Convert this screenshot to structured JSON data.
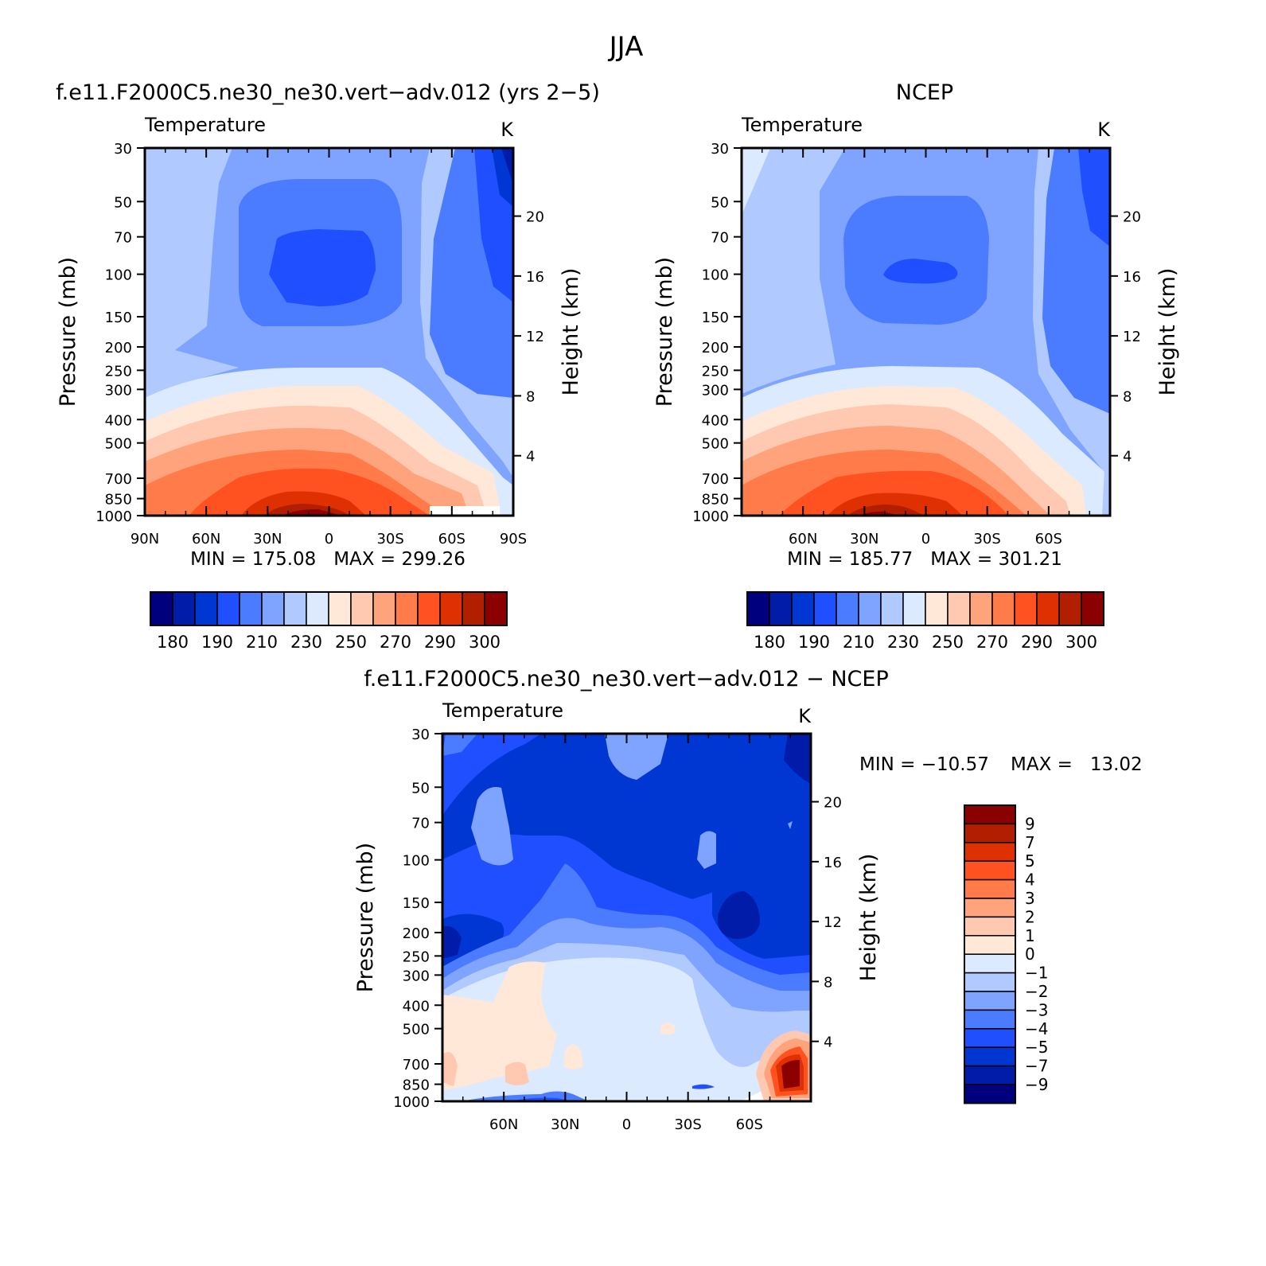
{
  "figure": {
    "title": "JJA"
  },
  "chart_data": [
    {
      "type": "heatmap",
      "title": "f.e11.F2000C5.ne30_ne30.vert−adv.012 (yrs 2−5)",
      "subtitle_left": "Temperature",
      "subtitle_right": "K",
      "ylabel": "Pressure (mb)",
      "y2label": "Height (km)",
      "x_ticks": [
        "90N",
        "60N",
        "30N",
        "0",
        "30S",
        "60S",
        "90S"
      ],
      "y_ticks": [
        30,
        50,
        70,
        100,
        150,
        200,
        250,
        300,
        400,
        500,
        700,
        850,
        1000
      ],
      "y2_ticks": [
        20,
        16,
        12,
        8,
        4
      ],
      "stats": "MIN = 175.08   MAX = 299.26",
      "colorbar_labels": [
        "180",
        "190",
        "210",
        "230",
        "250",
        "270",
        "290",
        "300"
      ]
    },
    {
      "type": "heatmap",
      "title": "NCEP",
      "subtitle_left": "Temperature",
      "subtitle_right": "K",
      "ylabel": "Pressure (mb)",
      "y2label": "Height (km)",
      "x_ticks": [
        "60N",
        "30N",
        "0",
        "30S",
        "60S"
      ],
      "y_ticks": [
        30,
        50,
        70,
        100,
        150,
        200,
        250,
        300,
        400,
        500,
        700,
        850,
        1000
      ],
      "y2_ticks": [
        20,
        16,
        12,
        8,
        4
      ],
      "stats": "MIN = 185.77   MAX = 301.21",
      "colorbar_labels": [
        "180",
        "190",
        "210",
        "230",
        "250",
        "270",
        "290",
        "300"
      ]
    },
    {
      "type": "heatmap",
      "title": "f.e11.F2000C5.ne30_ne30.vert−adv.012 − NCEP",
      "subtitle_left": "Temperature",
      "subtitle_right": "K",
      "ylabel": "Pressure (mb)",
      "y2label": "Height (km)",
      "x_ticks": [
        "60N",
        "30N",
        "0",
        "30S",
        "60S"
      ],
      "y_ticks": [
        30,
        50,
        70,
        100,
        150,
        200,
        250,
        300,
        400,
        500,
        700,
        850,
        1000
      ],
      "y2_ticks": [
        20,
        16,
        12,
        8,
        4
      ],
      "stats_min": "MIN = −10.57",
      "stats_max": "MAX =   13.02",
      "colorbar_labels": [
        "9",
        "7",
        "5",
        "4",
        "3",
        "2",
        "1",
        "0",
        "−1",
        "−2",
        "−3",
        "−4",
        "−5",
        "−7",
        "−9"
      ]
    }
  ],
  "palette": [
    "#00007f",
    "#001ca8",
    "#0037d2",
    "#1f4fff",
    "#4b7bff",
    "#7ea4ff",
    "#b0c9ff",
    "#dbeaff",
    "#ffe8d8",
    "#ffc8b0",
    "#ffa37c",
    "#ff7b4a",
    "#ff5220",
    "#de3000",
    "#b21e00",
    "#8b0000"
  ]
}
